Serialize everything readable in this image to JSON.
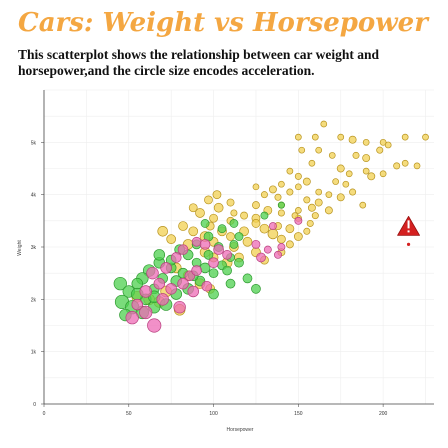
{
  "title": "Cars: Weight vs Horsepower",
  "subtitle": "This scatterplot shows the relationship between car weight and horsepower,and the circle size encodes acceleration.",
  "colors": {
    "title": "#f4a742",
    "yellow": "#f2d052",
    "green": "#4dd04f",
    "pink": "#ee6bb5",
    "warning": "#d42020"
  },
  "warning_icon": "warning-triangle-icon",
  "chart_data": {
    "type": "scatter",
    "title": "Cars: Weight vs Horsepower",
    "xlabel": "Horsepower",
    "ylabel": "Weight",
    "xlim": [
      0,
      230
    ],
    "ylim": [
      0,
      6000
    ],
    "xticks": [
      "0",
      "50",
      "100",
      "150",
      "200"
    ],
    "yticks": [
      "0",
      "1k",
      "2k",
      "3k",
      "4k",
      "5k"
    ],
    "grid": true,
    "size_encoding": "Acceleration",
    "series": [
      {
        "color": "yellow",
        "points": [
          [
            150,
            5100,
            12
          ],
          [
            160,
            5100,
            12
          ],
          [
            165,
            5350,
            11
          ],
          [
            175,
            5100,
            11
          ],
          [
            182,
            5050,
            14
          ],
          [
            190,
            5000,
            12
          ],
          [
            200,
            5000,
            10
          ],
          [
            213,
            5100,
            10
          ],
          [
            225,
            5100,
            10
          ],
          [
            152,
            4850,
            12
          ],
          [
            162,
            4850,
            12
          ],
          [
            170,
            4750,
            11
          ],
          [
            184,
            4750,
            13
          ],
          [
            190,
            4700,
            14
          ],
          [
            198,
            4850,
            13
          ],
          [
            203,
            4950,
            12
          ],
          [
            208,
            4550,
            13
          ],
          [
            213,
            4600,
            11
          ],
          [
            220,
            4550,
            10
          ],
          [
            175,
            4500,
            14
          ],
          [
            180,
            4400,
            11
          ],
          [
            190,
            4450,
            12
          ],
          [
            193,
            4350,
            14
          ],
          [
            200,
            4400,
            12
          ],
          [
            172,
            4250,
            12
          ],
          [
            178,
            4200,
            12
          ],
          [
            158,
            4600,
            12
          ],
          [
            150,
            4350,
            13
          ],
          [
            145,
            4450,
            12
          ],
          [
            140,
            4200,
            12
          ],
          [
            135,
            4100,
            14
          ],
          [
            125,
            4150,
            12
          ],
          [
            130,
            4000,
            13
          ],
          [
            138,
            3950,
            13
          ],
          [
            145,
            4050,
            13
          ],
          [
            150,
            4150,
            12
          ],
          [
            155,
            4250,
            14
          ],
          [
            162,
            4050,
            12
          ],
          [
            168,
            4000,
            12
          ],
          [
            175,
            3950,
            14
          ],
          [
            182,
            4050,
            13
          ],
          [
            188,
            3800,
            12
          ],
          [
            155,
            3900,
            13
          ],
          [
            162,
            3850,
            14
          ],
          [
            140,
            3800,
            13
          ],
          [
            150,
            3700,
            12
          ],
          [
            158,
            3750,
            14
          ],
          [
            125,
            3800,
            14
          ],
          [
            132,
            3700,
            15
          ],
          [
            140,
            3650,
            13
          ],
          [
            150,
            3550,
            13
          ],
          [
            160,
            3600,
            13
          ],
          [
            168,
            3700,
            14
          ],
          [
            112,
            3650,
            13
          ],
          [
            118,
            3600,
            14
          ],
          [
            125,
            3550,
            15
          ],
          [
            110,
            3500,
            14
          ],
          [
            100,
            3550,
            15
          ],
          [
            103,
            3750,
            16
          ],
          [
            97,
            3900,
            15
          ],
          [
            102,
            4000,
            15
          ],
          [
            110,
            3850,
            14
          ],
          [
            88,
            3750,
            15
          ],
          [
            92,
            3650,
            16
          ],
          [
            98,
            3400,
            15
          ],
          [
            105,
            3300,
            16
          ],
          [
            110,
            3200,
            15
          ],
          [
            118,
            3300,
            16
          ],
          [
            125,
            3450,
            15
          ],
          [
            130,
            3350,
            16
          ],
          [
            135,
            3250,
            17
          ],
          [
            140,
            3150,
            15
          ],
          [
            145,
            3050,
            14
          ],
          [
            150,
            3200,
            15
          ],
          [
            155,
            3300,
            13
          ],
          [
            138,
            3400,
            14
          ],
          [
            145,
            3350,
            15
          ],
          [
            120,
            3100,
            16
          ],
          [
            112,
            3000,
            16
          ],
          [
            125,
            2900,
            16
          ],
          [
            130,
            2750,
            15
          ],
          [
            140,
            2900,
            14
          ],
          [
            115,
            2800,
            16
          ],
          [
            108,
            2700,
            17
          ],
          [
            100,
            3100,
            16
          ],
          [
            95,
            3200,
            17
          ],
          [
            88,
            3300,
            16
          ],
          [
            82,
            3400,
            16
          ],
          [
            75,
            3150,
            16
          ],
          [
            95,
            2900,
            17
          ],
          [
            100,
            2800,
            16
          ],
          [
            85,
            3050,
            17
          ],
          [
            70,
            3300,
            17
          ],
          [
            78,
            2600,
            17
          ],
          [
            85,
            2450,
            17
          ],
          [
            92,
            2300,
            17
          ],
          [
            98,
            2200,
            16
          ],
          [
            72,
            2150,
            18
          ],
          [
            62,
            2000,
            18
          ],
          [
            68,
            1950,
            18
          ],
          [
            55,
            2050,
            18
          ],
          [
            80,
            1800,
            18
          ],
          [
            148,
            3600,
            12
          ],
          [
            157,
            3450,
            13
          ]
        ]
      },
      {
        "color": "green",
        "points": [
          [
            45,
            2300,
            20
          ],
          [
            50,
            2150,
            19
          ],
          [
            46,
            1950,
            21
          ],
          [
            52,
            1850,
            21
          ],
          [
            58,
            1750,
            20
          ],
          [
            48,
            1700,
            19
          ],
          [
            60,
            2000,
            18
          ],
          [
            65,
            2200,
            17
          ],
          [
            70,
            2400,
            17
          ],
          [
            75,
            2600,
            17
          ],
          [
            68,
            2700,
            18
          ],
          [
            62,
            2550,
            19
          ],
          [
            58,
            2400,
            19
          ],
          [
            55,
            2300,
            18
          ],
          [
            68,
            2850,
            18
          ],
          [
            75,
            2750,
            17
          ],
          [
            80,
            2950,
            17
          ],
          [
            85,
            2850,
            17
          ],
          [
            90,
            2700,
            16
          ],
          [
            95,
            2600,
            17
          ],
          [
            100,
            2500,
            16
          ],
          [
            105,
            2650,
            16
          ],
          [
            110,
            2800,
            15
          ],
          [
            115,
            2700,
            16
          ],
          [
            108,
            2550,
            16
          ],
          [
            92,
            2350,
            17
          ],
          [
            85,
            2200,
            18
          ],
          [
            78,
            2100,
            18
          ],
          [
            72,
            1900,
            19
          ],
          [
            65,
            1850,
            19
          ],
          [
            82,
            2500,
            17
          ],
          [
            78,
            2350,
            18
          ],
          [
            88,
            2450,
            17
          ],
          [
            97,
            2850,
            16
          ],
          [
            103,
            3000,
            16
          ],
          [
            112,
            3050,
            15
          ],
          [
            90,
            3050,
            16
          ],
          [
            97,
            3200,
            16
          ],
          [
            105,
            3350,
            15
          ],
          [
            112,
            3450,
            15
          ],
          [
            115,
            3200,
            15
          ],
          [
            130,
            3600,
            14
          ],
          [
            140,
            3800,
            13
          ],
          [
            95,
            3450,
            15
          ],
          [
            120,
            2400,
            16
          ],
          [
            125,
            2200,
            16
          ],
          [
            110,
            2300,
            16
          ],
          [
            100,
            2100,
            17
          ],
          [
            65,
            2050,
            19
          ],
          [
            55,
            2100,
            19
          ]
        ]
      },
      {
        "color": "pink",
        "points": [
          [
            52,
            1650,
            20
          ],
          [
            65,
            1500,
            21
          ],
          [
            55,
            1900,
            18
          ],
          [
            60,
            2150,
            19
          ],
          [
            68,
            2300,
            18
          ],
          [
            75,
            2200,
            18
          ],
          [
            82,
            2300,
            18
          ],
          [
            86,
            2450,
            17
          ],
          [
            72,
            2600,
            18
          ],
          [
            64,
            2500,
            19
          ],
          [
            78,
            2800,
            17
          ],
          [
            82,
            2950,
            17
          ],
          [
            90,
            3100,
            16
          ],
          [
            95,
            3050,
            17
          ],
          [
            103,
            2950,
            17
          ],
          [
            108,
            2850,
            16
          ],
          [
            100,
            2700,
            17
          ],
          [
            90,
            2550,
            17
          ],
          [
            88,
            2150,
            18
          ],
          [
            96,
            2250,
            17
          ],
          [
            125,
            3050,
            15
          ],
          [
            132,
            2950,
            14
          ],
          [
            138,
            2850,
            14
          ],
          [
            128,
            2800,
            16
          ],
          [
            135,
            3400,
            14
          ],
          [
            140,
            3000,
            14
          ],
          [
            150,
            3500,
            14
          ],
          [
            70,
            2000,
            19
          ],
          [
            80,
            1850,
            19
          ],
          [
            60,
            1750,
            20
          ]
        ]
      },
      {
        "color": "warning",
        "points": [
          [
            215,
            3050,
            10
          ]
        ]
      }
    ]
  }
}
